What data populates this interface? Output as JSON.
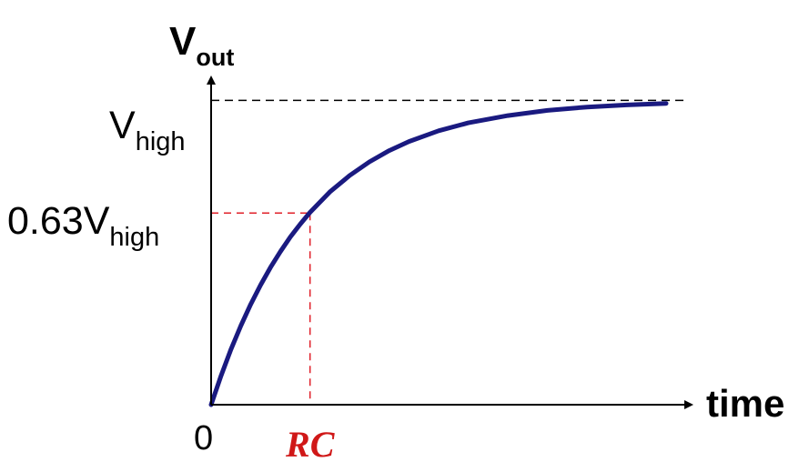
{
  "chart_data": {
    "type": "line",
    "title": "",
    "ylabel": {
      "main": "V",
      "sub": "out"
    },
    "xlabel": "time",
    "origin_label": "0",
    "y_ticks": [
      {
        "main": "V",
        "sub": "high",
        "prefix": "",
        "value": 1.0
      },
      {
        "main": "V",
        "sub": "high",
        "prefix": "0.63",
        "value": 0.63
      }
    ],
    "x_ticks": [
      {
        "label": "RC",
        "value": 1
      }
    ],
    "xlim": [
      0,
      4.6
    ],
    "ylim": [
      0,
      1.3
    ],
    "grid": false,
    "legend": "none",
    "series": [
      {
        "equation": "1 - exp(-t/RC)",
        "x": [
          0,
          0.1,
          0.2,
          0.3,
          0.4,
          0.5,
          0.6,
          0.7,
          0.8,
          0.9,
          1.0,
          1.2,
          1.4,
          1.6,
          1.8,
          2.0,
          2.3,
          2.6,
          3.0,
          3.4,
          3.8,
          4.2,
          4.6
        ],
        "values": [
          0,
          0.095,
          0.181,
          0.259,
          0.33,
          0.393,
          0.451,
          0.503,
          0.551,
          0.593,
          0.632,
          0.699,
          0.753,
          0.798,
          0.835,
          0.865,
          0.9,
          0.926,
          0.95,
          0.967,
          0.978,
          0.985,
          0.99
        ]
      }
    ],
    "reference_lines": [
      {
        "kind": "horizontal",
        "value": 1.0,
        "style": "dashed"
      },
      {
        "kind": "horizontal",
        "value": 0.63,
        "to_x": 1,
        "style": "dashed"
      },
      {
        "kind": "vertical",
        "value": 1,
        "to_y": 0.63,
        "style": "dashed"
      }
    ],
    "colors": {
      "curve": "#1a1a80",
      "axes": "#000000",
      "vhigh_guide": "#000000",
      "rc_guides": "#e0202a",
      "rc_label": "#d01818"
    }
  }
}
